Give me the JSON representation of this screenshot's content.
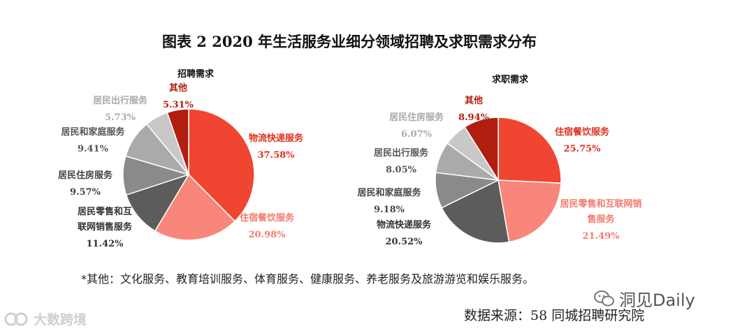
{
  "title": "图表 2 2020 年生活服务业细分领域招聘及求职需求分布",
  "footnote": "*其他：文化服务、教育培训服务、体育服务、健康服务、养老服务及旅游游览和娱乐服务。",
  "source": "数据来源：58 同城招聘研究院",
  "watermark_left": "大数跨境",
  "watermark_right": "洞见Daily",
  "chart_data": [
    {
      "type": "pie",
      "title": "招聘需求",
      "slices": [
        {
          "name": "物流快递服务",
          "value": 37.58,
          "label": "37.58%",
          "color": "#f04530"
        },
        {
          "name": "住宿餐饮服务",
          "value": 20.98,
          "label": "20.98%",
          "color": "#f8867a"
        },
        {
          "name": "居民零售和互联网销售服务",
          "value": 11.42,
          "label": "11.42%",
          "color": "#5c5c5c"
        },
        {
          "name": "居民住房服务",
          "value": 9.57,
          "label": "9.57%",
          "color": "#8a8a8a"
        },
        {
          "name": "居民和家庭服务",
          "value": 9.41,
          "label": "9.41%",
          "color": "#aaaaaa"
        },
        {
          "name": "居民出行服务",
          "value": 5.73,
          "label": "5.73%",
          "color": "#c8c8c8"
        },
        {
          "name": "其他",
          "value": 5.31,
          "label": "5.31%",
          "color": "#b01e10"
        }
      ]
    },
    {
      "type": "pie",
      "title": "求职需求",
      "slices": [
        {
          "name": "住宿餐饮服务",
          "value": 25.75,
          "label": "25.75%",
          "color": "#f04530"
        },
        {
          "name": "居民零售和互联网销售服务",
          "value": 21.49,
          "label": "21.49%",
          "color": "#f8867a"
        },
        {
          "name": "物流快递服务",
          "value": 20.52,
          "label": "20.52%",
          "color": "#5c5c5c"
        },
        {
          "name": "居民和家庭服务",
          "value": 9.18,
          "label": "9.18%",
          "color": "#8a8a8a"
        },
        {
          "name": "居民出行服务",
          "value": 8.05,
          "label": "8.05%",
          "color": "#aaaaaa"
        },
        {
          "name": "居民住房服务",
          "value": 6.07,
          "label": "6.07%",
          "color": "#c8c8c8"
        },
        {
          "name": "其他",
          "value": 8.94,
          "label": "8.94%",
          "color": "#b01e10"
        }
      ]
    }
  ]
}
